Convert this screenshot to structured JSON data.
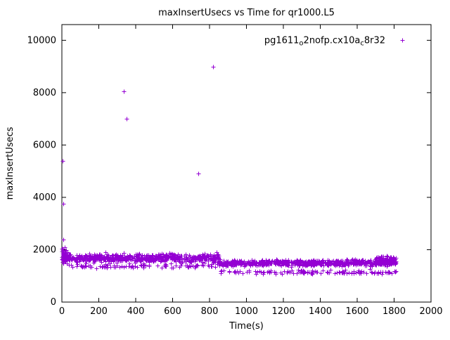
{
  "chart_data": {
    "type": "scatter",
    "title": "maxInsertUsecs vs Time for qr1000.L5",
    "xlabel": "Time(s)",
    "ylabel": "maxInsertUsecs",
    "xlim": [
      0,
      2000
    ],
    "ylim": [
      0,
      10600
    ],
    "xticks": [
      0,
      200,
      400,
      600,
      800,
      1000,
      1200,
      1400,
      1600,
      1800,
      2000
    ],
    "yticks": [
      0,
      2000,
      4000,
      6000,
      8000,
      10000
    ],
    "grid": false,
    "marker": {
      "glyph": "plus",
      "color": "#9400d3",
      "size": 3
    },
    "axis_color": "#000000",
    "legend": {
      "position": "top-right",
      "label_plain": "pg1611_o2nofp.cx10a_c8r32",
      "parts": [
        {
          "text": "pg1611"
        },
        {
          "text": "o",
          "sub": true
        },
        {
          "text": "2nofp.cx10a"
        },
        {
          "text": "c",
          "sub": true
        },
        {
          "text": "8r32"
        }
      ]
    },
    "series": [
      {
        "name": "pg1611_o2nofp.cx10a_c8r32",
        "outliers": [
          [
            4,
            5400
          ],
          [
            6,
            3750
          ],
          [
            9,
            2400
          ],
          [
            335,
            8050
          ],
          [
            352,
            7000
          ],
          [
            738,
            4900
          ],
          [
            820,
            9000
          ]
        ],
        "band_seed": 42,
        "bands": [
          {
            "x0": 1,
            "x1": 30,
            "yc": 1750,
            "spread": 500,
            "n": 60
          },
          {
            "x0": 0,
            "x1": 850,
            "yc": 1680,
            "spread": 260,
            "n": 680
          },
          {
            "x0": 30,
            "x1": 850,
            "yc": 1380,
            "spread": 140,
            "n": 90
          },
          {
            "x0": 850,
            "x1": 1810,
            "yc": 1500,
            "spread": 190,
            "n": 650
          },
          {
            "x0": 850,
            "x1": 1810,
            "yc": 1150,
            "spread": 130,
            "n": 130
          },
          {
            "x0": 1700,
            "x1": 1810,
            "yc": 1620,
            "spread": 260,
            "n": 90
          }
        ]
      }
    ]
  }
}
